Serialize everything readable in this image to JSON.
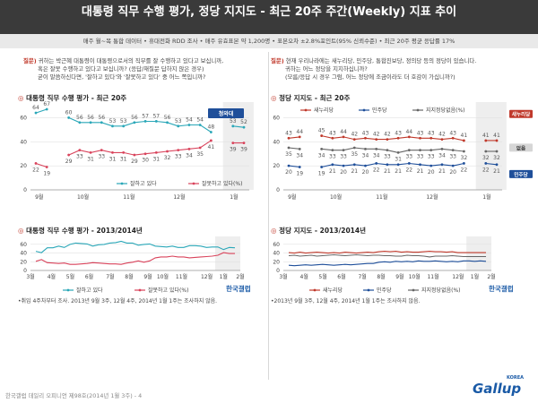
{
  "header": {
    "title": "대통령 직무 수행 평가, 정당 지지도 - 최근 20주 주간(Weekly) 지표 추이",
    "subtitle": "매주 월~목 통합 데이터 • 휴대전화 RDD 조사 • 매주 유효표본 약 1,200명 • 표본오차 ±2.8%포인트(95% 신뢰수준) • 최근 20주 평균 응답률 17%"
  },
  "left_question": {
    "label": "질문)",
    "lines": [
      "귀하는 박근혜 대통령이 대통령으로서의 직무를 잘 수행하고 있다고 보십니까,",
      "혹은 잘못 수행하고 있다고 보십니까? (응답/재질문 답하지 않은 경우)",
      "굳이 말씀하신다면, '잘하고 있다'와 '잘못하고 있다' 중 어느 쪽입니까?"
    ]
  },
  "right_question": {
    "label": "질문)",
    "lines": [
      "현재 우리나라에는 새누리당, 민주당, 통합진보당, 정의당 등의 정당이 있습니다.",
      "귀하는 어느 정당을 지지하십니까?",
      "(모름/응답 시 경우 그럼, 어느 정당에 조금이라도 더 호감이 가십니까?)"
    ]
  },
  "chart_data": [
    {
      "type": "line",
      "title": "대통령 직무 수행 평가 - 최근 20주",
      "ylim": [
        0,
        70
      ],
      "yticks": [
        "0",
        "20",
        "40",
        "60"
      ],
      "month_labels": [
        "9월",
        "10월",
        "11월",
        "12월",
        "1월"
      ],
      "series": [
        {
          "name": "잘하고 있다",
          "color": "#2aa7b8",
          "values": [
            64,
            67,
            null,
            60,
            56,
            56,
            56,
            53,
            53,
            56,
            57,
            57,
            56,
            53,
            54,
            54,
            48,
            null,
            53,
            52
          ]
        },
        {
          "name": "잘못하고 있다(%)",
          "color": "#d9435b",
          "values": [
            22,
            19,
            null,
            29,
            33,
            31,
            33,
            31,
            31,
            29,
            30,
            31,
            32,
            33,
            34,
            35,
            41,
            null,
            39,
            39
          ]
        }
      ],
      "image_label": "청와대"
    },
    {
      "type": "line",
      "title": "정당 지지도 - 최근 20주",
      "ylim": [
        0,
        70
      ],
      "yticks": [
        "0",
        "20",
        "40",
        "60"
      ],
      "month_labels": [
        "9월",
        "10월",
        "11월",
        "12월",
        "1월"
      ],
      "series": [
        {
          "name": "새누리당",
          "color": "#c0392b",
          "values": [
            43,
            44,
            null,
            45,
            43,
            44,
            42,
            43,
            42,
            42,
            43,
            44,
            43,
            43,
            42,
            43,
            41,
            null,
            41,
            41
          ]
        },
        {
          "name": "민주당",
          "color": "#1f4f9a",
          "values": [
            20,
            19,
            null,
            19,
            21,
            20,
            21,
            20,
            22,
            21,
            21,
            22,
            21,
            20,
            21,
            20,
            22,
            null,
            22,
            21
          ]
        },
        {
          "name": "지지정당없음(%)",
          "color": "#666666",
          "values": [
            35,
            34,
            null,
            34,
            33,
            33,
            35,
            34,
            34,
            33,
            31,
            33,
            33,
            33,
            34,
            33,
            32,
            null,
            32,
            32
          ]
        }
      ],
      "end_labels": [
        "새누리당",
        "없음",
        "민주당"
      ]
    },
    {
      "type": "line",
      "title": "대통령 직무 수행 평가 - 2013/2014년",
      "ylim": [
        0,
        70
      ],
      "yticks": [
        "0",
        "20",
        "40",
        "60"
      ],
      "month_labels": [
        "3월",
        "4월",
        "5월",
        "6월",
        "7월",
        "8월",
        "9월",
        "10월",
        "11월",
        "12월",
        "1월",
        "2월"
      ],
      "series": [
        {
          "name": "잘하고 있다",
          "color": "#2aa7b8",
          "values": [
            44,
            41,
            52,
            52,
            56,
            53,
            60,
            63,
            62,
            61,
            56,
            59,
            60,
            63,
            64,
            67,
            63,
            63,
            58,
            60,
            61,
            56,
            55,
            54,
            56,
            53,
            53,
            57,
            57,
            56,
            53,
            54,
            54,
            48,
            53,
            52
          ]
        },
        {
          "name": "잘못하고 있다(%)",
          "color": "#d9435b",
          "values": [
            21,
            25,
            18,
            17,
            16,
            17,
            14,
            14,
            15,
            16,
            18,
            17,
            16,
            15,
            15,
            14,
            17,
            19,
            22,
            19,
            22,
            29,
            31,
            31,
            33,
            31,
            31,
            29,
            30,
            31,
            32,
            33,
            35,
            41,
            39,
            39
          ]
        }
      ],
      "brand": "한국갤럽"
    },
    {
      "type": "line",
      "title": "정당 지지도 - 2013/2014년",
      "ylim": [
        0,
        70
      ],
      "yticks": [
        "0",
        "20",
        "40",
        "60"
      ],
      "month_labels": [
        "3월",
        "4월",
        "5월",
        "6월",
        "7월",
        "8월",
        "9월",
        "10월",
        "11월",
        "12월",
        "1월",
        "2월"
      ],
      "series": [
        {
          "name": "새누리당",
          "color": "#c0392b",
          "values": [
            41,
            40,
            42,
            40,
            41,
            42,
            41,
            40,
            41,
            40,
            42,
            41,
            40,
            41,
            42,
            41,
            43,
            44,
            43,
            44,
            42,
            43,
            42,
            42,
            43,
            44,
            43,
            43,
            42,
            43,
            41,
            41,
            41,
            41,
            41,
            41
          ]
        },
        {
          "name": "민주당",
          "color": "#1f4f9a",
          "values": [
            12,
            11,
            12,
            13,
            12,
            13,
            14,
            13,
            12,
            13,
            14,
            13,
            14,
            15,
            16,
            16,
            19,
            20,
            19,
            21,
            20,
            21,
            20,
            22,
            21,
            21,
            22,
            21,
            20,
            21,
            20,
            22,
            22,
            21,
            22,
            21
          ]
        },
        {
          "name": "지지정당없음(%)",
          "color": "#666666",
          "values": [
            34,
            35,
            33,
            34,
            35,
            33,
            34,
            35,
            36,
            35,
            34,
            35,
            36,
            35,
            34,
            35,
            35,
            34,
            34,
            33,
            33,
            35,
            34,
            34,
            33,
            31,
            33,
            33,
            33,
            34,
            33,
            32,
            32,
            32,
            32,
            32
          ]
        }
      ],
      "brand": "한국갤럽"
    }
  ],
  "notes": {
    "left": "•취임 4주차부터 조사. 2013년 9월 3주, 12월 4주, 2014년 1월 1주는 조사하지 않음.",
    "right": "•2013년 9월 3주, 12월 4주, 2014년 1월 1주는 조사하지 않음."
  },
  "footer": "한국갤럽 데일리 오피니언 제98호(2014년 1월 3주) - 4",
  "logo": {
    "text": "Gallup",
    "korea": "KOREA"
  }
}
